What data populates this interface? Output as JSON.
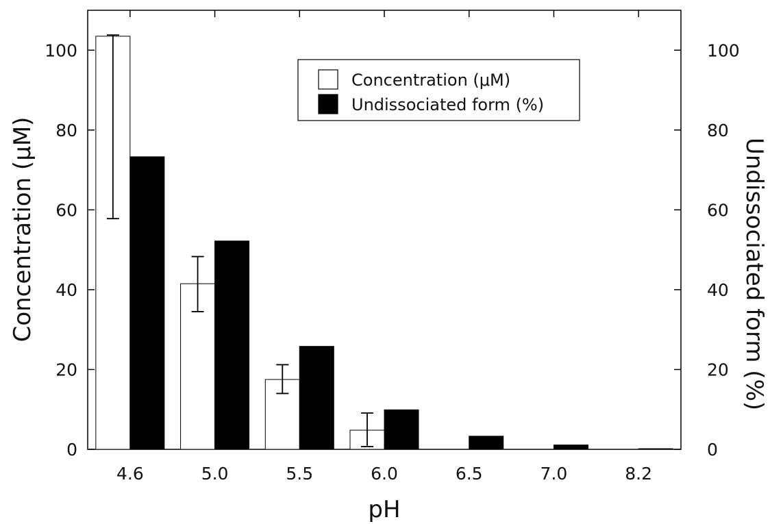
{
  "chart_data": {
    "type": "bar",
    "categories": [
      "4.6",
      "5.0",
      "5.5",
      "6.0",
      "6.5",
      "7.0",
      "8.2"
    ],
    "series": [
      {
        "name": "Concentration (μM)",
        "axis": "left",
        "fill": "#ffffff",
        "values": [
          103.5,
          41.5,
          17.5,
          4.8,
          null,
          null,
          null
        ],
        "error": [
          [
            57.8,
            103.8
          ],
          [
            34.5,
            48.3
          ],
          [
            14.0,
            21.2
          ],
          [
            0.7,
            9.1
          ],
          null,
          null,
          null
        ]
      },
      {
        "name": "Undissociated form (%)",
        "axis": "right",
        "fill": "#000000",
        "values": [
          73.3,
          52.2,
          25.8,
          9.9,
          3.3,
          1.1,
          0.1
        ]
      }
    ],
    "xlabel": "pH",
    "ylabel_left": "Concentration (μM)",
    "ylabel_right": "Undissociated form (%)",
    "ylim_left": [
      0,
      110
    ],
    "ylim_right": [
      0,
      110
    ],
    "yticks_left": [
      "0",
      "20",
      "40",
      "60",
      "80",
      "100"
    ],
    "yticks_right": [
      "0",
      "20",
      "40",
      "60",
      "80",
      "100"
    ],
    "grid": false,
    "legend_position": "top-right"
  }
}
